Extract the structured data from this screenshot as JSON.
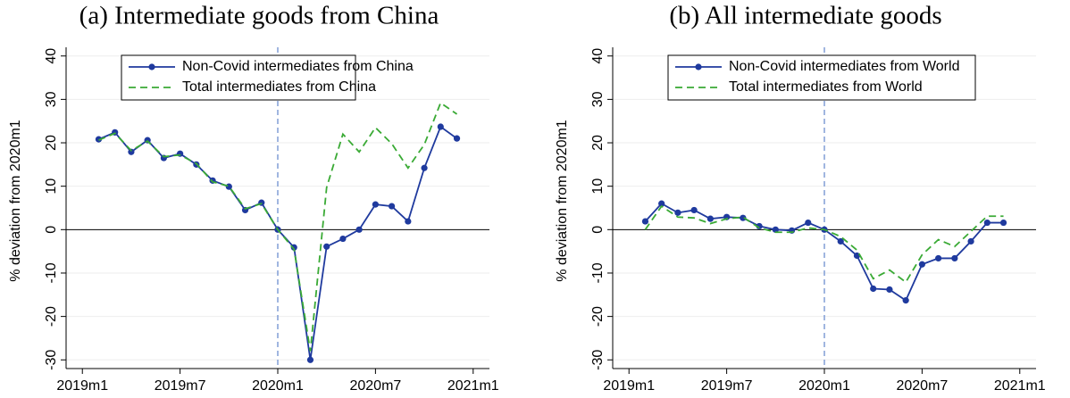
{
  "chart_data": [
    {
      "type": "line",
      "title": "(a) Intermediate goods from China",
      "ylabel": "% deviation from 2020m1",
      "x": [
        "2019m2",
        "2019m3",
        "2019m4",
        "2019m5",
        "2019m6",
        "2019m7",
        "2019m8",
        "2019m9",
        "2019m10",
        "2019m11",
        "2019m12",
        "2020m1",
        "2020m2",
        "2020m3",
        "2020m4",
        "2020m5",
        "2020m6",
        "2020m7",
        "2020m8",
        "2020m9",
        "2020m10",
        "2020m11",
        "2020m12"
      ],
      "series": [
        {
          "name": "Non-Covid intermediates from China",
          "color": "#1f3a9e",
          "marker": true,
          "dashed": false,
          "values": [
            20.8,
            22.4,
            17.9,
            20.6,
            16.5,
            17.5,
            15.0,
            11.3,
            9.9,
            4.5,
            6.2,
            0,
            -4.1,
            -30,
            -3.9,
            -2.1,
            0,
            5.8,
            5.4,
            1.9,
            14.2,
            23.7,
            21.0
          ]
        },
        {
          "name": "Total intermediates from China",
          "color": "#3aaa35",
          "marker": false,
          "dashed": true,
          "values": [
            20.6,
            22.2,
            18.2,
            20.4,
            16.8,
            17.2,
            15.2,
            11.0,
            10.0,
            4.8,
            6.0,
            0,
            -4.5,
            -28,
            9.7,
            22.0,
            17.9,
            23.5,
            19.8,
            14.2,
            19.6,
            29.2,
            26.6
          ]
        }
      ],
      "xlim": [
        "2018m12",
        "2021m2"
      ],
      "xticks": [
        "2019m1",
        "2019m7",
        "2020m1",
        "2020m7",
        "2021m1"
      ],
      "ylim": [
        -32,
        42
      ],
      "yticks": [
        -30,
        -20,
        -10,
        0,
        10,
        20,
        30,
        40
      ],
      "grid": true,
      "vline": "2020m1",
      "hline": 0,
      "legend": "top"
    },
    {
      "type": "line",
      "title": "(b) All intermediate goods",
      "ylabel": "% deviation from 2020m1",
      "x": [
        "2019m2",
        "2019m3",
        "2019m4",
        "2019m5",
        "2019m6",
        "2019m7",
        "2019m8",
        "2019m9",
        "2019m10",
        "2019m11",
        "2019m12",
        "2020m1",
        "2020m2",
        "2020m3",
        "2020m4",
        "2020m5",
        "2020m6",
        "2020m7",
        "2020m8",
        "2020m9",
        "2020m10",
        "2020m11",
        "2020m12"
      ],
      "series": [
        {
          "name": "Non-Covid intermediates from World",
          "color": "#1f3a9e",
          "marker": true,
          "dashed": false,
          "values": [
            1.9,
            6.0,
            3.9,
            4.5,
            2.5,
            2.9,
            2.7,
            0.8,
            0.0,
            -0.2,
            1.6,
            0,
            -2.7,
            -6.0,
            -13.6,
            -13.8,
            -16.3,
            -8.0,
            -6.6,
            -6.6,
            -2.7,
            1.6,
            1.6
          ]
        },
        {
          "name": "Total intermediates from World",
          "color": "#3aaa35",
          "marker": false,
          "dashed": true,
          "values": [
            0,
            5.4,
            2.9,
            2.7,
            1.4,
            2.5,
            2.9,
            0.4,
            -0.6,
            -0.6,
            0.4,
            0,
            -1.6,
            -4.7,
            -11.3,
            -9.3,
            -12.1,
            -5.8,
            -2.3,
            -3.9,
            -0.4,
            3.1,
            3.1
          ]
        }
      ],
      "xlim": [
        "2018m12",
        "2021m2"
      ],
      "xticks": [
        "2019m1",
        "2019m7",
        "2020m1",
        "2020m7",
        "2021m1"
      ],
      "ylim": [
        -32,
        42
      ],
      "yticks": [
        -30,
        -20,
        -10,
        0,
        10,
        20,
        30,
        40
      ],
      "grid": true,
      "vline": "2020m1",
      "hline": 0,
      "legend": "top"
    }
  ]
}
